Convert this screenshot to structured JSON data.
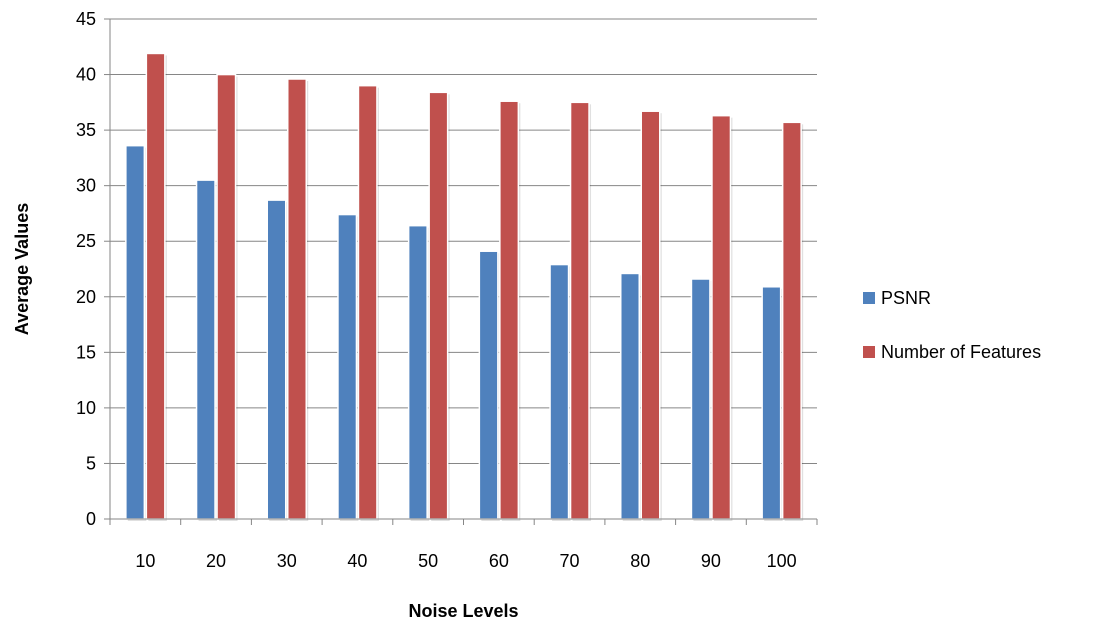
{
  "chart_data": {
    "type": "bar",
    "title": "",
    "xlabel": "Noise Levels",
    "ylabel": "Average Values",
    "categories": [
      "10",
      "20",
      "30",
      "40",
      "50",
      "60",
      "70",
      "80",
      "90",
      "100"
    ],
    "series": [
      {
        "name": "PSNR",
        "color": "#4F81BD",
        "values": [
          33.6,
          30.5,
          28.7,
          27.4,
          26.4,
          24.1,
          22.9,
          22.1,
          21.6,
          20.9
        ]
      },
      {
        "name": "Number of Features",
        "color": "#C0504D",
        "values": [
          41.9,
          40.0,
          39.6,
          39.0,
          38.4,
          37.6,
          37.5,
          36.7,
          36.3,
          35.7
        ]
      }
    ],
    "ylim": [
      0,
      45
    ],
    "yticks": [
      "0",
      "5",
      "10",
      "15",
      "20",
      "25",
      "30",
      "35",
      "40",
      "45"
    ],
    "grid": true,
    "legend_position": "right"
  }
}
